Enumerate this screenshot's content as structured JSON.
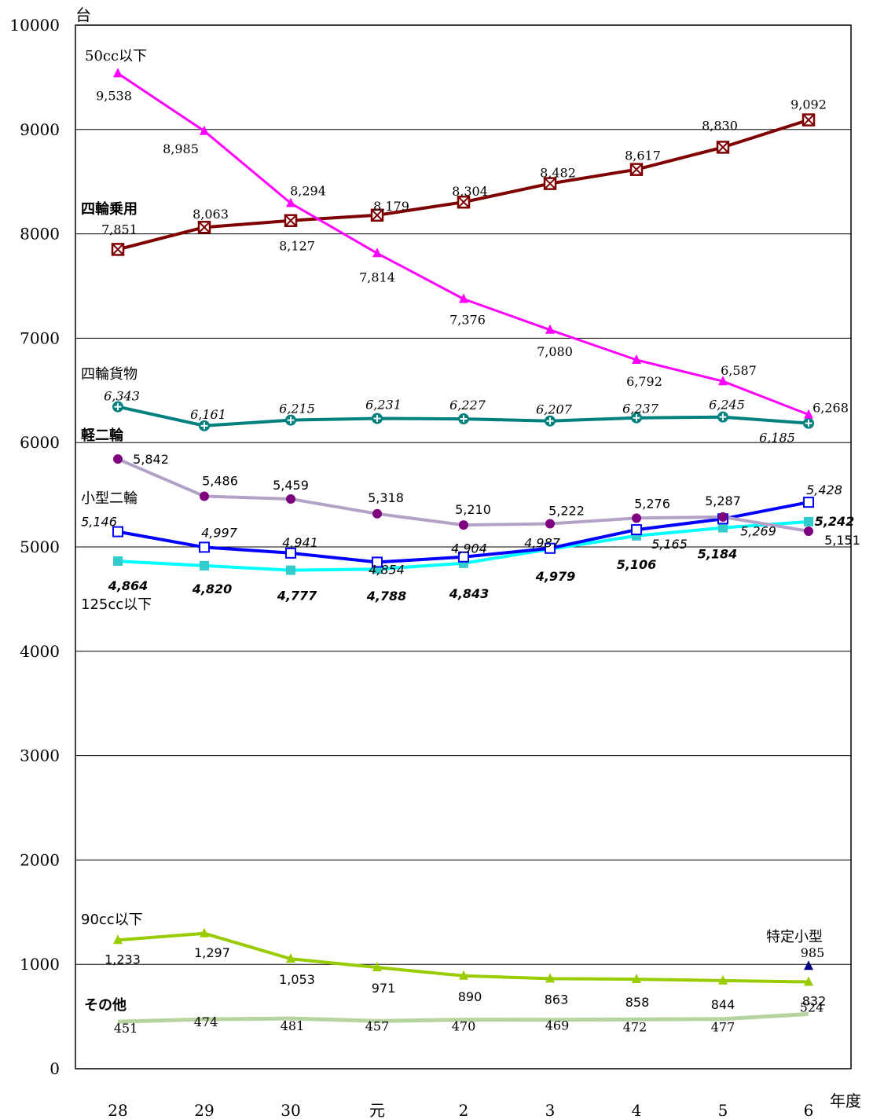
{
  "chart_data": {
    "type": "line",
    "y_unit": "台",
    "x_unit": "年度",
    "categories": [
      "28",
      "29",
      "30",
      "元",
      "2",
      "3",
      "4",
      "5",
      "6"
    ],
    "ylim": [
      0,
      10000
    ],
    "yticks": [
      "0",
      "1000",
      "2000",
      "3000",
      "4000",
      "5000",
      "6000",
      "7000",
      "8000",
      "9000",
      "10000"
    ],
    "grid": true,
    "series": [
      {
        "name": "50cc以下",
        "color": "#ff00ff",
        "marker": "triangle",
        "values": [
          9538,
          8985,
          8294,
          7814,
          7376,
          7080,
          6792,
          6587,
          6268
        ],
        "labels": [
          "9,538",
          "8,985",
          "8,294",
          "7,814",
          "7,376",
          "7,080",
          "6,792",
          "6,587",
          "6,268"
        ]
      },
      {
        "name": "四輪乗用",
        "color": "#7f0000",
        "marker": "box-x",
        "values": [
          7851,
          8063,
          8127,
          8179,
          8304,
          8482,
          8617,
          8830,
          9092
        ],
        "labels": [
          "7,851",
          "8,063",
          "8,127",
          "8,179",
          "8,304",
          "8,482",
          "8,617",
          "8,830",
          "9,092"
        ]
      },
      {
        "name": "四輪貨物",
        "color": "#007f7f",
        "marker": "circle-plus",
        "values": [
          6343,
          6161,
          6215,
          6231,
          6227,
          6207,
          6237,
          6245,
          6185
        ],
        "labels": [
          "6,343",
          "6,161",
          "6,215",
          "6,231",
          "6,227",
          "6,207",
          "6,237",
          "6,245",
          "6,185"
        ]
      },
      {
        "name": "軽二輪",
        "color": "#b3a2c7",
        "marker": "circle",
        "marker_color": "#7f007f",
        "values": [
          5842,
          5486,
          5459,
          5318,
          5210,
          5222,
          5276,
          5287,
          5151
        ],
        "labels": [
          "5,842",
          "5,486",
          "5,459",
          "5,318",
          "5,210",
          "5,222",
          "5,276",
          "5,287",
          "5,151"
        ]
      },
      {
        "name": "小型二輪",
        "color": "#0000ff",
        "marker": "square-open",
        "values": [
          5146,
          4997,
          4941,
          4854,
          4904,
          4987,
          5165,
          5269,
          5428
        ],
        "labels": [
          "5,146",
          "4,997",
          "4,941",
          "4,854",
          "4,904",
          "4,987",
          "5,165",
          "5,269",
          "5,428"
        ]
      },
      {
        "name": "125cc以下",
        "color": "#00ffff",
        "marker": "square",
        "marker_color": "#33cccc",
        "values": [
          4864,
          4820,
          4777,
          4788,
          4843,
          4979,
          5106,
          5184,
          5242
        ],
        "labels": [
          "4,864",
          "4,820",
          "4,777",
          "4,788",
          "4,843",
          "4,979",
          "5,106",
          "5,184",
          "5,242"
        ]
      },
      {
        "name": "90cc以下",
        "color": "#99cc00",
        "marker": "triangle",
        "values": [
          1233,
          1297,
          1053,
          971,
          890,
          863,
          858,
          844,
          832
        ],
        "labels": [
          "1,233",
          "1,297",
          "1,053",
          "971",
          "890",
          "863",
          "858",
          "844",
          "832"
        ]
      },
      {
        "name": "その他",
        "color": "#b7d4a0",
        "marker": "none",
        "values": [
          451,
          474,
          481,
          457,
          470,
          469,
          472,
          477,
          524
        ],
        "labels": [
          "451",
          "474",
          "481",
          "457",
          "470",
          "469",
          "472",
          "477",
          "524"
        ]
      },
      {
        "name": "特定小型",
        "color": "#000080",
        "marker": "triangle",
        "values": [
          null,
          null,
          null,
          null,
          null,
          null,
          null,
          null,
          985
        ],
        "labels": [
          "",
          "",
          "",
          "",
          "",
          "",
          "",
          "",
          "985"
        ]
      }
    ]
  }
}
